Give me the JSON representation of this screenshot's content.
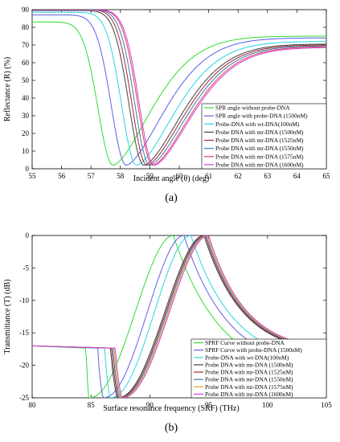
{
  "chart_data": [
    {
      "type": "line",
      "panel_label": "(a)",
      "xlabel": "Incident angle (θ) (deg)",
      "ylabel": "Reflectance (R) (%)",
      "xlim": [
        55,
        65
      ],
      "ylim": [
        0,
        90
      ],
      "xticks": [
        "55",
        "56",
        "57",
        "58",
        "59",
        "60",
        "61",
        "62",
        "63",
        "64",
        "65"
      ],
      "yticks": [
        "0",
        "10",
        "20",
        "30",
        "40",
        "50",
        "60",
        "70",
        "80",
        "90"
      ],
      "legend_position": "lower-right",
      "series": [
        {
          "name": "SPR angle without probe-DNA",
          "color": "#33dd33",
          "min_x": 57.75,
          "min_y": 2,
          "start_y": 83,
          "end_y": 75
        },
        {
          "name": "SPR angle with probe-DNA (1500nM)",
          "color": "#6060e8",
          "min_x": 58.2,
          "min_y": 2,
          "start_y": 87,
          "end_y": 74
        },
        {
          "name": "Probe-DNA with wt-DNA(100nM)",
          "color": "#2ad6e6",
          "min_x": 58.55,
          "min_y": 2,
          "start_y": 88.5,
          "end_y": 72
        },
        {
          "name": "Probe DNA with mr-DNA (1500nM)",
          "color": "#444444",
          "min_x": 58.8,
          "min_y": 2,
          "start_y": 89.5,
          "end_y": 70.5
        },
        {
          "name": "Probe DNA with mr-DNA (1525nM)",
          "color": "#a02a30",
          "min_x": 58.9,
          "min_y": 2,
          "start_y": 90,
          "end_y": 70
        },
        {
          "name": "Probe DNA with mr-DNA (1550nM)",
          "color": "#3a7bb8",
          "min_x": 59.0,
          "min_y": 2,
          "start_y": 90,
          "end_y": 69.5
        },
        {
          "name": "Probe DNA with mr-DNA (1575nM)",
          "color": "#e04050",
          "min_x": 59.1,
          "min_y": 2,
          "start_y": 90,
          "end_y": 69
        },
        {
          "name": "Probe DNA with mr-DNA (1600nM)",
          "color": "#d040d8",
          "min_x": 59.15,
          "min_y": 2,
          "start_y": 90,
          "end_y": 68.5
        }
      ]
    },
    {
      "type": "line",
      "panel_label": "(b)",
      "xlabel": "Surface resonance frequency (SRF) (THz)",
      "ylabel": "Transmittance (T) (dB)",
      "xlim": [
        80,
        105
      ],
      "ylim": [
        -25,
        0
      ],
      "xticks": [
        "80",
        "85",
        "90",
        "95",
        "100",
        "105"
      ],
      "yticks": [
        "0",
        "-5",
        "-10",
        "-15",
        "-20",
        "-25"
      ],
      "legend_position": "lower-right",
      "series": [
        {
          "name": "SPRF Curve without probe-DNA",
          "color": "#33dd33",
          "drop_x": 84.6,
          "min_x": 84.8,
          "peak_x": 92.0,
          "end_y": -21.5
        },
        {
          "name": "SPRF Curve with probe-DNA (1500nM)",
          "color": "#6060e8",
          "drop_x": 85.6,
          "min_x": 86.0,
          "peak_x": 92.9,
          "end_y": -20.3
        },
        {
          "name": "Probe-DNA with wt-DNA(100nM)",
          "color": "#2ad6e6",
          "drop_x": 86.2,
          "min_x": 86.6,
          "peak_x": 93.5,
          "end_y": -19.3
        },
        {
          "name": "Probe DNA with mr-DNA (1500nM)",
          "color": "#444444",
          "drop_x": 86.7,
          "min_x": 87.2,
          "peak_x": 94.6,
          "end_y": -17.7
        },
        {
          "name": "Probe DNA with mr-DNA (1525nM)",
          "color": "#a02a30",
          "drop_x": 86.8,
          "min_x": 87.3,
          "peak_x": 94.7,
          "end_y": -17.6
        },
        {
          "name": "Probe DNA with mr-DNA (1550nM)",
          "color": "#3a7bb8",
          "drop_x": 86.9,
          "min_x": 87.4,
          "peak_x": 94.8,
          "end_y": -17.5
        },
        {
          "name": "Probe DNA with mr-DNA (1575nM)",
          "color": "#e0a020",
          "drop_x": 87.0,
          "min_x": 87.5,
          "peak_x": 94.9,
          "end_y": -17.4
        },
        {
          "name": "Probe DNA with mr-DNA (1600nM)",
          "color": "#d040d8",
          "drop_x": 87.1,
          "min_x": 87.6,
          "peak_x": 95.0,
          "end_y": -17.3
        }
      ]
    }
  ]
}
